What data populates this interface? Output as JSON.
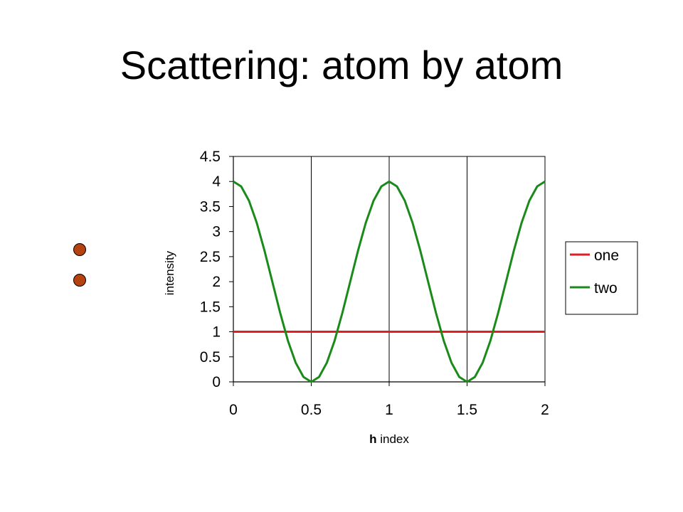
{
  "slide": {
    "title": "Scattering: atom by atom"
  },
  "atoms": [
    {
      "color": "#B5420F"
    },
    {
      "color": "#B5420F"
    }
  ],
  "chart_data": {
    "type": "line",
    "xlabel_bold": "h",
    "xlabel_rest": " index",
    "ylabel": "intensity",
    "xlim": [
      0,
      2
    ],
    "ylim": [
      0,
      4.5
    ],
    "xticks": [
      "0",
      "0.5",
      "1",
      "1.5",
      "2"
    ],
    "yticks": [
      "0",
      "0.5",
      "1",
      "1.5",
      "2",
      "2.5",
      "3",
      "3.5",
      "4",
      "4.5"
    ],
    "grid": "vertical",
    "legend_position": "right",
    "series": [
      {
        "name": "one",
        "color": "#E02020",
        "x": [
          0,
          0.5,
          1,
          1.5,
          2
        ],
        "y": [
          1,
          1,
          1,
          1,
          1
        ]
      },
      {
        "name": "two",
        "color": "#1A8A1A",
        "x": [
          0,
          0.05,
          0.1,
          0.15,
          0.2,
          0.25,
          0.3,
          0.35,
          0.4,
          0.45,
          0.5,
          0.55,
          0.6,
          0.65,
          0.7,
          0.75,
          0.8,
          0.85,
          0.9,
          0.95,
          1,
          1.05,
          1.1,
          1.15,
          1.2,
          1.25,
          1.3,
          1.35,
          1.4,
          1.45,
          1.5,
          1.55,
          1.6,
          1.65,
          1.7,
          1.75,
          1.8,
          1.85,
          1.9,
          1.95,
          2
        ],
        "y": [
          4,
          3.902,
          3.618,
          3.176,
          2.618,
          2,
          1.382,
          0.824,
          0.382,
          0.098,
          0,
          0.098,
          0.382,
          0.824,
          1.382,
          2,
          2.618,
          3.176,
          3.618,
          3.902,
          4,
          3.902,
          3.618,
          3.176,
          2.618,
          2,
          1.382,
          0.824,
          0.382,
          0.098,
          0,
          0.098,
          0.382,
          0.824,
          1.382,
          2,
          2.618,
          3.176,
          3.618,
          3.902,
          4
        ]
      }
    ]
  }
}
